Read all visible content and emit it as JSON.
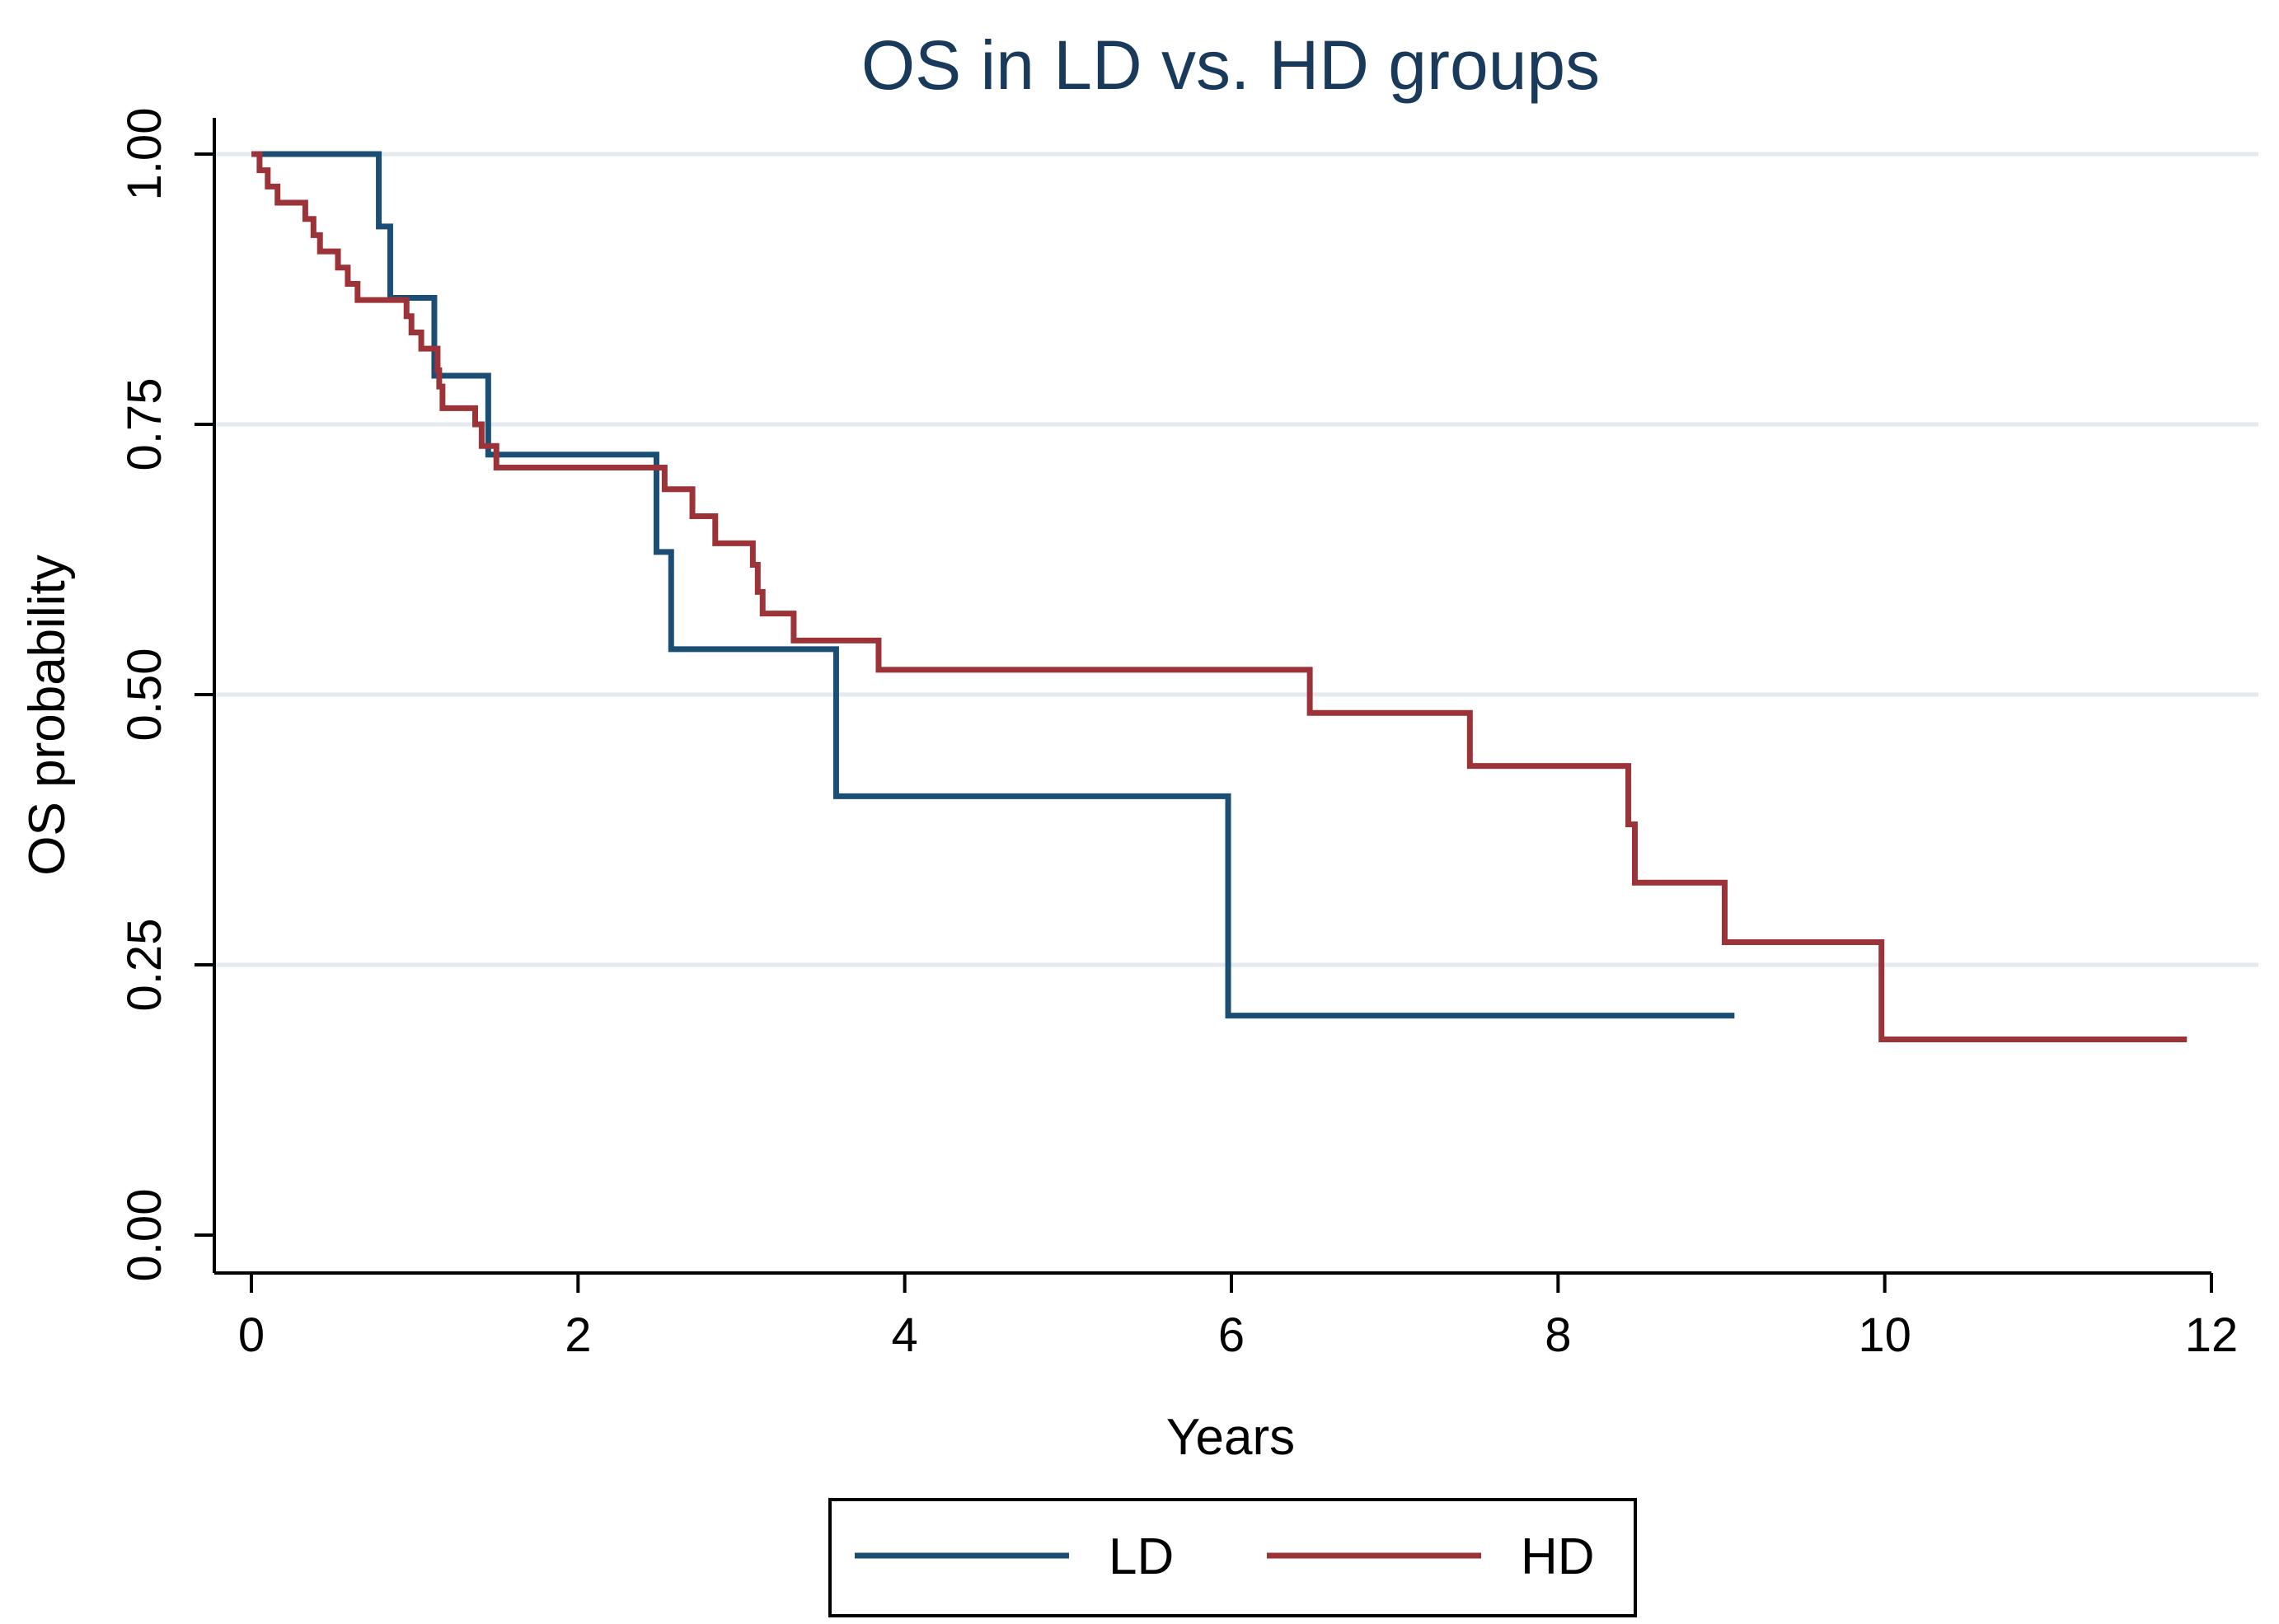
{
  "chart_data": {
    "type": "line",
    "step": true,
    "title": "OS in LD vs. HD groups",
    "xlabel": "Years",
    "ylabel": "OS probability",
    "xlim": [
      0,
      12
    ],
    "ylim": [
      0,
      1
    ],
    "x_ticks": [
      0,
      2,
      4,
      6,
      8,
      10,
      12
    ],
    "x_tick_labels": [
      "0",
      "2",
      "4",
      "6",
      "8",
      "10",
      "12"
    ],
    "y_ticks": [
      0,
      0.25,
      0.5,
      0.75,
      1.0
    ],
    "y_tick_labels": [
      "0.00",
      "0.25",
      "0.50",
      "0.75",
      "1.00"
    ],
    "grid": "horizontal",
    "legend_position": "bottom",
    "series": [
      {
        "name": "LD",
        "color": "#1b4e75",
        "steps": [
          [
            0,
            1.0
          ],
          [
            0.78,
            0.933
          ],
          [
            0.85,
            0.867
          ],
          [
            1.12,
            0.795
          ],
          [
            1.45,
            0.722
          ],
          [
            2.48,
            0.632
          ],
          [
            2.57,
            0.542
          ],
          [
            3.58,
            0.406
          ],
          [
            5.98,
            0.203
          ]
        ],
        "end": 9.08
      },
      {
        "name": "HD",
        "color": "#9c3338",
        "steps": [
          [
            0,
            1.0
          ],
          [
            0.05,
            0.985
          ],
          [
            0.1,
            0.97
          ],
          [
            0.16,
            0.955
          ],
          [
            0.33,
            0.94
          ],
          [
            0.38,
            0.925
          ],
          [
            0.42,
            0.91
          ],
          [
            0.53,
            0.895
          ],
          [
            0.59,
            0.88
          ],
          [
            0.65,
            0.865
          ],
          [
            0.95,
            0.85
          ],
          [
            0.98,
            0.835
          ],
          [
            1.04,
            0.82
          ],
          [
            1.14,
            0.8
          ],
          [
            1.15,
            0.785
          ],
          [
            1.17,
            0.765
          ],
          [
            1.37,
            0.75
          ],
          [
            1.41,
            0.73
          ],
          [
            1.5,
            0.71
          ],
          [
            2.53,
            0.69
          ],
          [
            2.7,
            0.665
          ],
          [
            2.84,
            0.64
          ],
          [
            3.07,
            0.62
          ],
          [
            3.1,
            0.595
          ],
          [
            3.13,
            0.575
          ],
          [
            3.32,
            0.55
          ],
          [
            3.84,
            0.523
          ],
          [
            6.48,
            0.483
          ],
          [
            7.46,
            0.434
          ],
          [
            8.43,
            0.38
          ],
          [
            8.47,
            0.326
          ],
          [
            9.02,
            0.271
          ],
          [
            9.98,
            0.181
          ]
        ],
        "end": 11.85
      }
    ]
  }
}
